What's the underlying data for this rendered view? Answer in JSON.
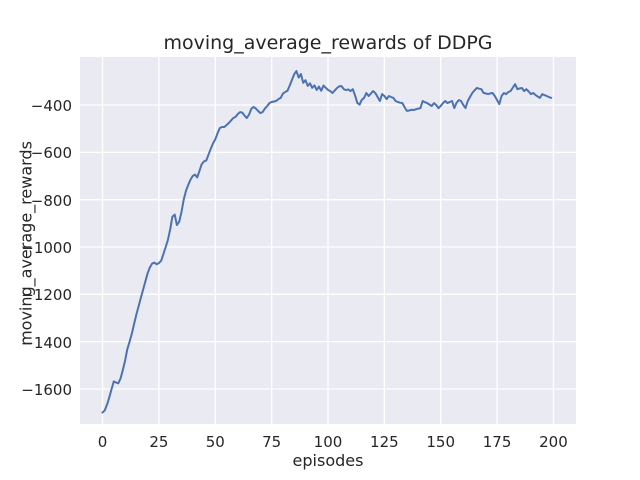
{
  "figure": {
    "background": "#ffffff"
  },
  "chart_data": {
    "type": "line",
    "title": "moving_average_rewards of DDPG",
    "xlabel": "episodes",
    "ylabel": "moving_average_rewards",
    "xlim": [
      -10,
      210
    ],
    "ylim": [
      -1748,
      -197
    ],
    "grid": true,
    "legend_position": "none",
    "style": "seaborn-darkgrid",
    "colors": {
      "axes_background": "#EAEAF2",
      "grid": "#FFFFFF",
      "line": "#4C72B0",
      "text": "#262626",
      "figure_background": "#FFFFFF"
    },
    "xticks": {
      "values": [
        0,
        25,
        50,
        75,
        100,
        125,
        150,
        175,
        200
      ],
      "labels": [
        "0",
        "25",
        "50",
        "75",
        "100",
        "125",
        "150",
        "175",
        "200"
      ]
    },
    "yticks": {
      "values": [
        -400,
        -600,
        -800,
        -1000,
        -1200,
        -1400,
        -1600
      ],
      "labels": [
        "−400",
        "−600",
        "−800",
        "−1000",
        "−1200",
        "−1400",
        "−1600"
      ]
    },
    "series": [
      {
        "name": "moving_average_rewards",
        "x_start": 0,
        "x_step": 1,
        "values": [
          -1700,
          -1690,
          -1665,
          -1635,
          -1600,
          -1568,
          -1573,
          -1576,
          -1555,
          -1520,
          -1480,
          -1432,
          -1400,
          -1365,
          -1325,
          -1285,
          -1250,
          -1214,
          -1180,
          -1145,
          -1111,
          -1086,
          -1070,
          -1066,
          -1073,
          -1068,
          -1058,
          -1030,
          -1000,
          -970,
          -925,
          -872,
          -863,
          -907,
          -893,
          -852,
          -800,
          -762,
          -738,
          -715,
          -700,
          -694,
          -706,
          -678,
          -650,
          -638,
          -634,
          -610,
          -585,
          -562,
          -545,
          -520,
          -497,
          -493,
          -493,
          -485,
          -476,
          -465,
          -455,
          -450,
          -438,
          -430,
          -432,
          -445,
          -455,
          -440,
          -416,
          -408,
          -415,
          -425,
          -434,
          -430,
          -415,
          -405,
          -392,
          -387,
          -385,
          -383,
          -375,
          -370,
          -352,
          -345,
          -340,
          -318,
          -294,
          -270,
          -256,
          -284,
          -269,
          -306,
          -295,
          -319,
          -308,
          -327,
          -317,
          -336,
          -322,
          -340,
          -318,
          -327,
          -336,
          -341,
          -349,
          -338,
          -328,
          -321,
          -320,
          -333,
          -337,
          -334,
          -341,
          -333,
          -360,
          -391,
          -398,
          -378,
          -370,
          -349,
          -362,
          -352,
          -341,
          -349,
          -366,
          -383,
          -354,
          -362,
          -375,
          -362,
          -366,
          -370,
          -383,
          -387,
          -390,
          -392,
          -410,
          -425,
          -423,
          -420,
          -421,
          -418,
          -415,
          -413,
          -383,
          -388,
          -392,
          -398,
          -404,
          -392,
          -400,
          -413,
          -404,
          -392,
          -383,
          -392,
          -387,
          -383,
          -413,
          -391,
          -379,
          -383,
          -400,
          -413,
          -383,
          -366,
          -349,
          -338,
          -328,
          -331,
          -333,
          -349,
          -351,
          -354,
          -351,
          -349,
          -362,
          -379,
          -396,
          -362,
          -349,
          -354,
          -345,
          -341,
          -326,
          -312,
          -333,
          -330,
          -328,
          -341,
          -333,
          -343,
          -354,
          -349,
          -357,
          -364,
          -370,
          -354,
          -358,
          -362,
          -366,
          -370
        ]
      }
    ]
  }
}
